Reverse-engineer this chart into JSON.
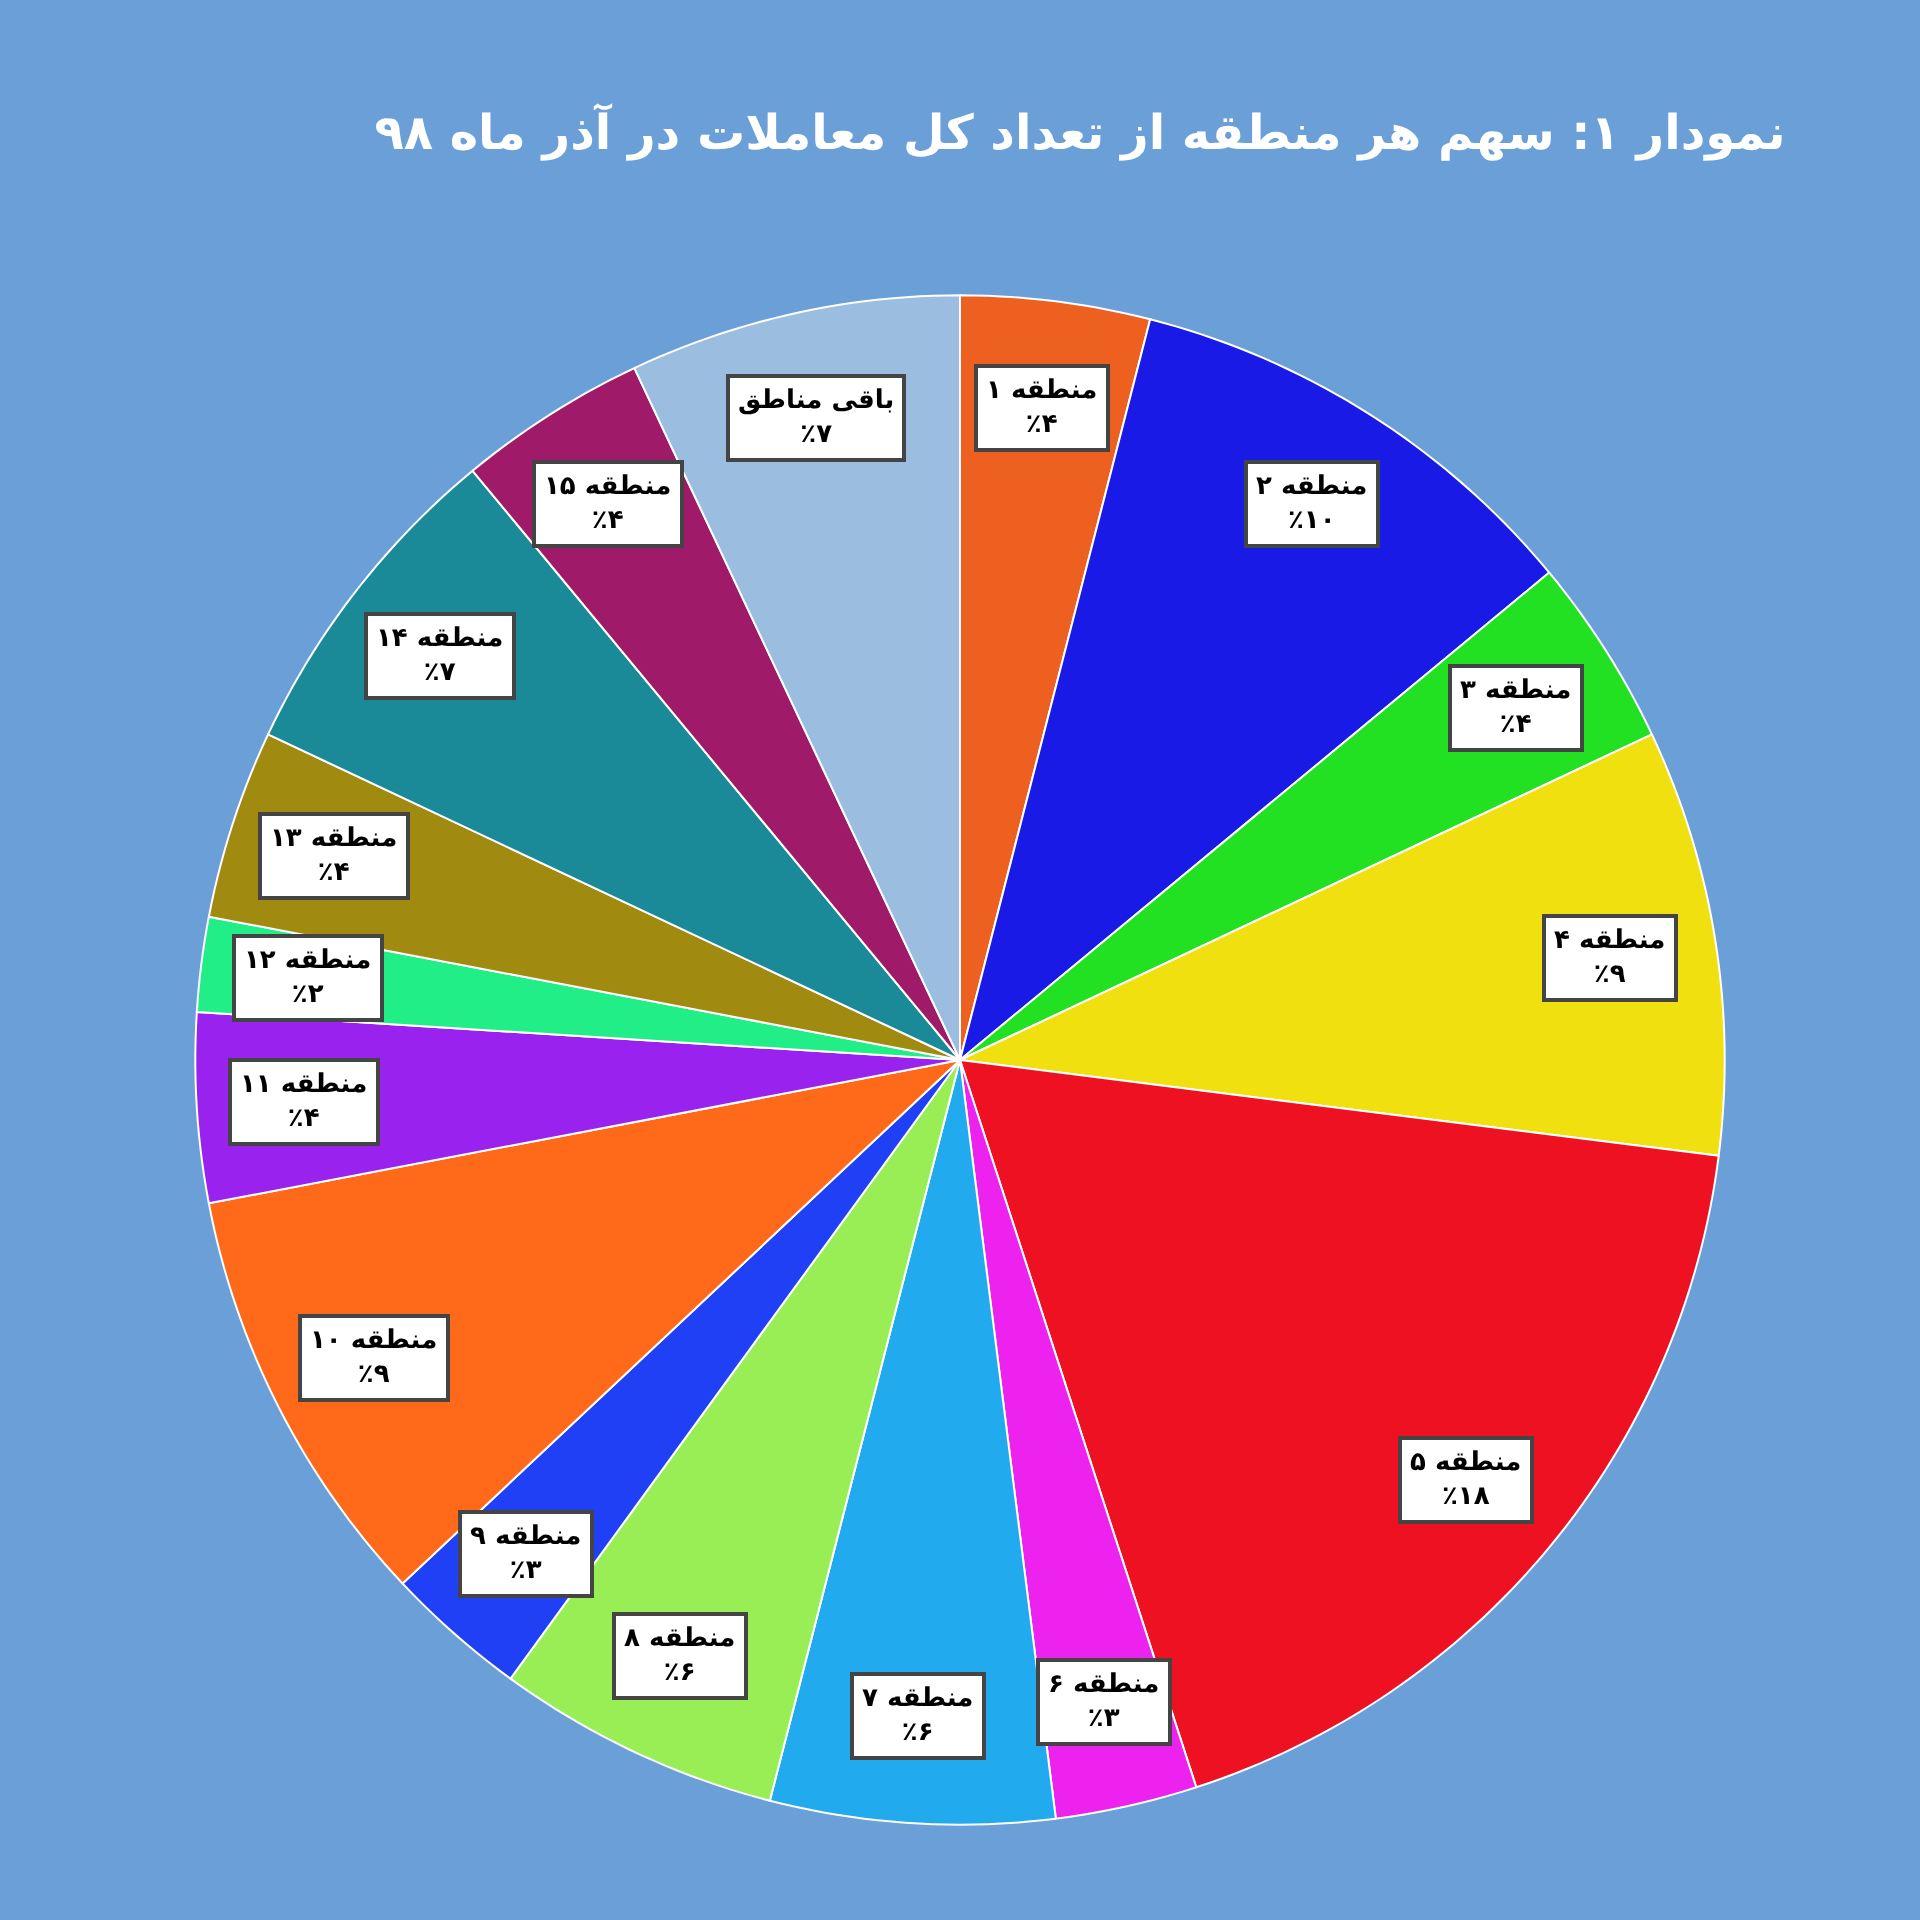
{
  "chart_data": {
    "type": "pie",
    "title": "نمودار ۱: سهم هر منطقه از تعداد کل معاملات در آذر ماه ۹۸",
    "categories": [
      "منطقه ۱",
      "منطقه ۲",
      "منطقه ۳",
      "منطقه ۴",
      "منطقه ۵",
      "منطقه ۶",
      "منطقه ۷",
      "منطقه ۸",
      "منطقه ۹",
      "منطقه ۱۰",
      "منطقه ۱۱",
      "منطقه ۱۲",
      "منطقه ۱۳",
      "منطقه ۱۴",
      "منطقه ۱۵",
      "باقی مناطق"
    ],
    "values": [
      4,
      10,
      4,
      9,
      18,
      3,
      6,
      6,
      3,
      9,
      4,
      2,
      4,
      7,
      4,
      7
    ],
    "value_labels": [
      "٪۴",
      "٪۱۰",
      "٪۴",
      "٪۹",
      "٪۱۸",
      "٪۳",
      "٪۶",
      "٪۶",
      "٪۳",
      "٪۹",
      "٪۴",
      "٪۲",
      "٪۴",
      "٪۷",
      "٪۴",
      "٪۷"
    ],
    "colors": [
      "#ee6020",
      "#1a1ae6",
      "#22e022",
      "#f0e010",
      "#ee1122",
      "#ee22ee",
      "#22aaee",
      "#99ee55",
      "#2040f5",
      "#ff6a1a",
      "#9922ee",
      "#22ee88",
      "#a08a10",
      "#1a8a99",
      "#a01a6a",
      "#9bbde0"
    ]
  }
}
